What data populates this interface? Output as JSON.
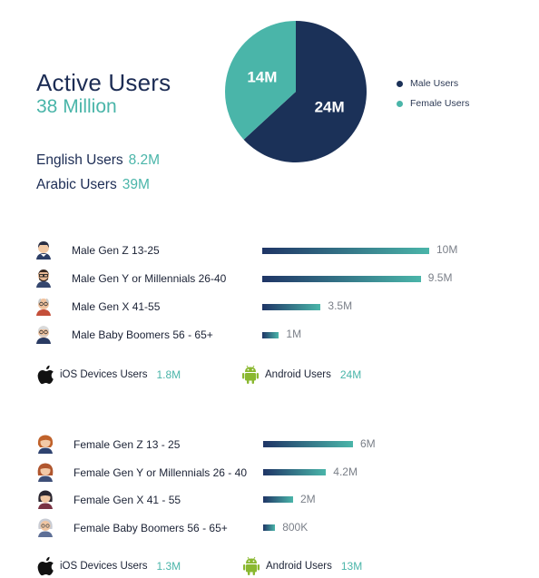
{
  "header": {
    "title": "Active Users",
    "subtitle": "38 Million",
    "stats": [
      {
        "label": "English Users",
        "value": "8.2M"
      },
      {
        "label": "Arabic Users",
        "value": "39M"
      }
    ]
  },
  "chart_data": [
    {
      "type": "pie",
      "slices": [
        {
          "name": "Male Users",
          "value": 24,
          "label": "24M",
          "color": "#1b3158"
        },
        {
          "name": "Female Users",
          "value": 14,
          "label": "14M",
          "color": "#4ab5a9"
        }
      ],
      "legend_placement": "right"
    },
    {
      "type": "bar",
      "orientation": "horizontal",
      "categories": [
        "Male Gen Z 13-25",
        "Male Gen Y or Millennials 26-40",
        "Male Gen X 41-55",
        "Male Baby Boomers 56 - 65+"
      ],
      "values": [
        10,
        9.5,
        3.5,
        1
      ],
      "value_labels": [
        "10M",
        "9.5M",
        "3.5M",
        "1M"
      ],
      "icons": [
        "male-gen-z-avatar-icon",
        "male-gen-y-avatar-icon",
        "male-gen-x-avatar-icon",
        "male-baby-boomer-avatar-icon"
      ]
    },
    {
      "type": "bar",
      "orientation": "horizontal",
      "categories": [
        "Female Gen Z 13 - 25",
        "Female Gen Y or Millennials 26 - 40",
        "Female Gen X 41 - 55",
        "Female Baby Boomers 56 - 65+"
      ],
      "values": [
        6,
        4.2,
        2,
        0.8
      ],
      "value_labels": [
        "6M",
        "4.2M",
        "2M",
        "800K"
      ],
      "icons": [
        "female-gen-z-avatar-icon",
        "female-gen-y-avatar-icon",
        "female-gen-x-avatar-icon",
        "female-baby-boomer-avatar-icon"
      ]
    }
  ],
  "devices": {
    "male": [
      {
        "label": "iOS Devices Users",
        "value": "1.8M",
        "icon": "apple-icon"
      },
      {
        "label": "Android Users",
        "value": "24M",
        "icon": "android-icon"
      }
    ],
    "female": [
      {
        "label": "iOS Devices Users",
        "value": "1.3M",
        "icon": "apple-icon"
      },
      {
        "label": "Android Users",
        "value": "13M",
        "icon": "android-icon"
      }
    ]
  },
  "colors": {
    "navy": "#1b3158",
    "teal": "#4ab5a9",
    "bar_start": "#1f3566",
    "bar_end": "#4ab5a9",
    "android": "#8ab830"
  }
}
